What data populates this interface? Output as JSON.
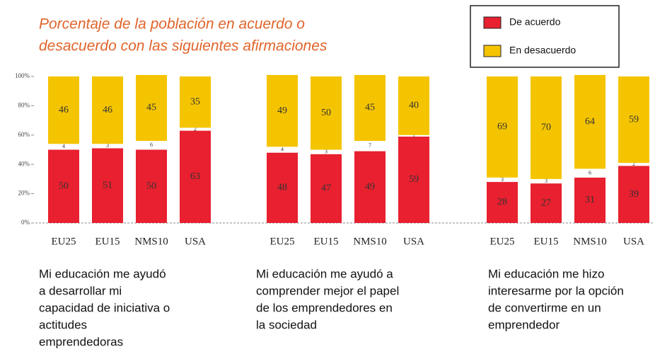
{
  "chart_data": [
    {
      "type": "stacked_bar",
      "title": [
        "Porcentaje de la población en acuerdo o",
        "desacuerdo con las siguientes afirmaciones"
      ],
      "categories": [
        "EU25",
        "EU15",
        "NMS10",
        "USA"
      ],
      "series": [
        {
          "name": "De acuerdo",
          "color": "#e8202f",
          "values": [
            50,
            51,
            50,
            63
          ]
        },
        {
          "color": "#ffffff",
          "values": [
            4,
            3,
            6,
            2
          ]
        },
        {
          "name": "En desacuerdo",
          "color": "#f5c400",
          "values": [
            46,
            46,
            45,
            35
          ]
        }
      ],
      "ylim": [
        0,
        100
      ],
      "yticks": [
        {
          "value": 0,
          "label": "0%"
        },
        {
          "value": 20,
          "label": "20%"
        },
        {
          "value": 40,
          "label": "40%"
        },
        {
          "value": 60,
          "label": "60%"
        },
        {
          "value": 80,
          "label": "80%"
        },
        {
          "value": 100,
          "label": "100%"
        }
      ],
      "caption": [
        "Mi educación me ayudó",
        "a desarrollar mi",
        "capacidad de iniciativa o",
        "actitudes",
        "emprendedoras"
      ]
    },
    {
      "type": "stacked_bar",
      "categories": [
        "EU25",
        "EU15",
        "NMS10",
        "USA"
      ],
      "series": [
        {
          "color": "#e8202f",
          "values": [
            48,
            47,
            49,
            59
          ]
        },
        {
          "color": "#ffffff",
          "values": [
            4,
            3,
            7,
            1
          ]
        },
        {
          "color": "#f5c400",
          "values": [
            49,
            50,
            45,
            40
          ]
        }
      ],
      "ylim": [
        0,
        100
      ],
      "caption": [
        "Mi educación me ayudó a",
        "comprender mejor el papel",
        "de los emprendedores en",
        "la sociedad"
      ]
    },
    {
      "type": "stacked_bar",
      "categories": [
        "EU25",
        "EU15",
        "NMS10",
        "USA"
      ],
      "series": [
        {
          "color": "#e8202f",
          "values": [
            28,
            27,
            31,
            39
          ]
        },
        {
          "color": "#ffffff",
          "values": [
            3,
            3,
            6,
            2
          ]
        },
        {
          "color": "#f5c400",
          "values": [
            69,
            70,
            64,
            59
          ]
        }
      ],
      "ylim": [
        0,
        100
      ],
      "caption": [
        "Mi educación me hizo",
        "interesarme por la opción",
        "de convertirme en un",
        "emprendedor"
      ]
    }
  ]
}
